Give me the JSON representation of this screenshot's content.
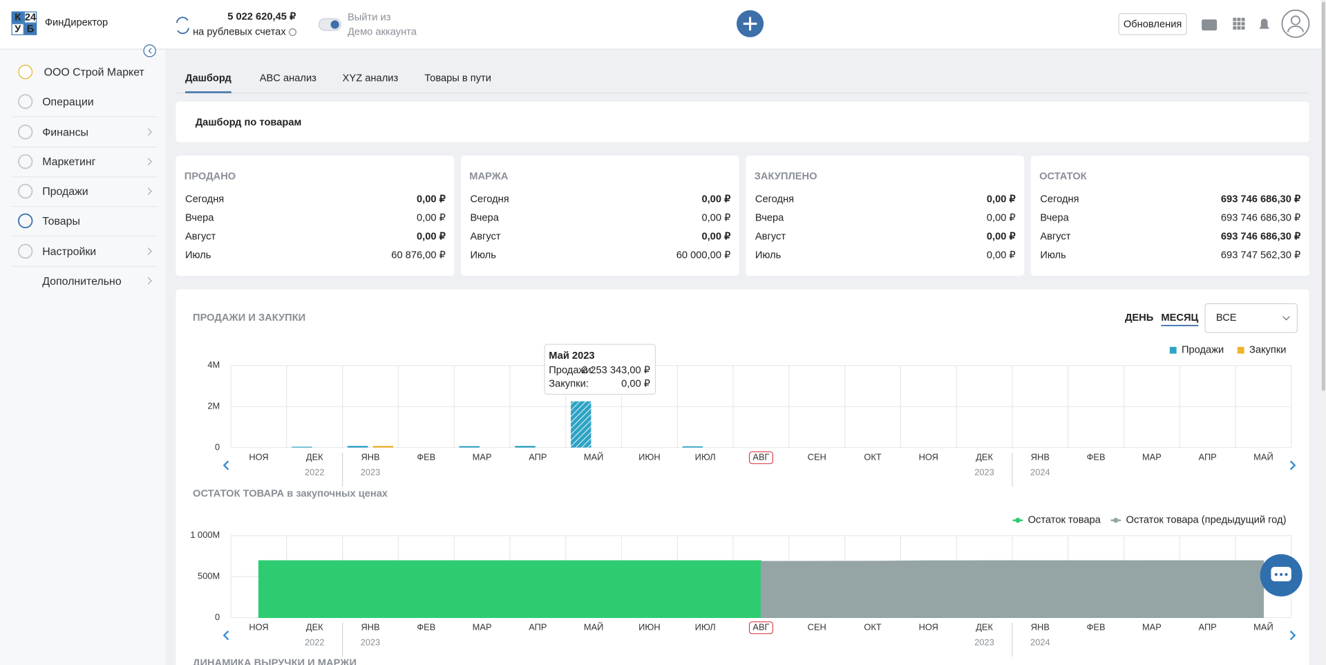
{
  "header": {
    "logo_letters": [
      "К",
      "24",
      "У",
      "Б"
    ],
    "app_name": "ФинДиректор",
    "balance": "5 022 620,45 ₽",
    "balance_note": "на рублевых счетах",
    "demo_line1": "Выйти из",
    "demo_line2": "Демо аккаунта",
    "updates_button": "Обновления"
  },
  "sidebar": {
    "company": "ООО Строй Маркет",
    "items": [
      "Операции",
      "Финансы",
      "Маркетинг",
      "Продажи",
      "Товары",
      "Настройки",
      "Дополнительно"
    ]
  },
  "tabs": [
    "Дашборд",
    "ABC анализ",
    "XYZ анализ",
    "Товары в пути"
  ],
  "page_title": "Дашборд по товарам",
  "cards": [
    {
      "title": "ПРОДАНО",
      "rows": [
        [
          "Сегодня",
          "0,00 ₽"
        ],
        [
          "Вчера",
          "0,00 ₽"
        ],
        [
          "Август",
          "0,00 ₽"
        ],
        [
          "Июль",
          "60 876,00 ₽"
        ]
      ]
    },
    {
      "title": "МАРЖА",
      "rows": [
        [
          "Сегодня",
          "0,00 ₽"
        ],
        [
          "Вчера",
          "0,00 ₽"
        ],
        [
          "Август",
          "0,00 ₽"
        ],
        [
          "Июль",
          "60 000,00 ₽"
        ]
      ]
    },
    {
      "title": "ЗАКУПЛЕНО",
      "rows": [
        [
          "Сегодня",
          "0,00 ₽"
        ],
        [
          "Вчера",
          "0,00 ₽"
        ],
        [
          "Август",
          "0,00 ₽"
        ],
        [
          "Июль",
          "0,00 ₽"
        ]
      ]
    },
    {
      "title": "ОСТАТОК",
      "rows": [
        [
          "Сегодня",
          "693 746 686,30 ₽"
        ],
        [
          "Вчера",
          "693 746 686,30 ₽"
        ],
        [
          "Август",
          "693 746 686,30 ₽"
        ],
        [
          "Июль",
          "693 747 562,30 ₽"
        ]
      ]
    }
  ],
  "charts_section": {
    "title": "ПРОДАЖИ И ЗАКУПКИ",
    "period_options": [
      "ДЕНЬ",
      "МЕСЯЦ"
    ],
    "filter": "ВСЕ",
    "next_title": "ДИНАМИКА ВЫРУЧКИ И МАРЖИ"
  },
  "chart_data": [
    {
      "type": "bar",
      "categories": [
        "НОЯ",
        "ДЕК",
        "ЯНВ",
        "ФЕВ",
        "МАР",
        "АПР",
        "МАЙ",
        "ИЮН",
        "ИЮЛ",
        "АВГ",
        "СЕН",
        "ОКТ",
        "НОЯ",
        "ДЕК",
        "ЯНВ",
        "ФЕВ",
        "МАР",
        "АПР",
        "МАЙ"
      ],
      "years": [
        null,
        "2022",
        "2023",
        null,
        null,
        null,
        null,
        null,
        null,
        null,
        null,
        null,
        null,
        "2023",
        "2024",
        null,
        null,
        null,
        null
      ],
      "highlight": 9,
      "ylim": [
        0,
        4000000
      ],
      "yticks": [
        0,
        {
          "value": 2000000,
          "label": "2M"
        },
        {
          "value": 4000000,
          "label": "4M"
        }
      ],
      "grid": true,
      "legend": "top-right",
      "series": [
        {
          "name": "Продажи",
          "color": "#2ea3c4",
          "values": [
            0,
            40000,
            80000,
            0,
            70000,
            80000,
            2253343,
            0,
            60876,
            0,
            null,
            null,
            null,
            null,
            null,
            null,
            null,
            null,
            null
          ]
        },
        {
          "name": "Закупки",
          "color": "#f0b429",
          "values": [
            0,
            0,
            80000,
            0,
            0,
            0,
            0,
            0,
            0,
            0,
            null,
            null,
            null,
            null,
            null,
            null,
            null,
            null,
            null
          ]
        }
      ],
      "tooltip": {
        "title": "Май 2023",
        "index": 6,
        "rows": [
          [
            "Продажи:",
            "2 253 343,00 ₽"
          ],
          [
            "Закупки:",
            "0,00 ₽"
          ]
        ]
      }
    },
    {
      "type": "area",
      "title": "ОСТАТОК ТОВАРА в закупочных ценах",
      "categories": [
        "НОЯ",
        "ДЕК",
        "ЯНВ",
        "ФЕВ",
        "МАР",
        "АПР",
        "МАЙ",
        "ИЮН",
        "ИЮЛ",
        "АВГ",
        "СЕН",
        "ОКТ",
        "НОЯ",
        "ДЕК",
        "ЯНВ",
        "ФЕВ",
        "МАР",
        "АПР",
        "МАЙ"
      ],
      "years": [
        null,
        "2022",
        "2023",
        null,
        null,
        null,
        null,
        null,
        null,
        null,
        null,
        null,
        null,
        "2023",
        "2024",
        null,
        null,
        null,
        null
      ],
      "highlight": 9,
      "ylim": [
        0,
        1000000000
      ],
      "yticks": [
        0,
        {
          "value": 500000000,
          "label": "500M"
        },
        {
          "value": 1000000000,
          "label": "1 000M"
        }
      ],
      "grid": true,
      "legend": "top-right",
      "series": [
        {
          "name": "Остаток товара",
          "color": "#2ecc71",
          "values": [
            694000000,
            694000000,
            694000000,
            694000000,
            694000000,
            694000000,
            693800000,
            693800000,
            693747562,
            693746686,
            null,
            null,
            null,
            null,
            null,
            null,
            null,
            null,
            null
          ]
        },
        {
          "name": "Остаток товара (предыдущий год)",
          "color": "#95a5a6",
          "values": [
            null,
            null,
            null,
            null,
            null,
            null,
            null,
            null,
            null,
            685000000,
            686000000,
            687000000,
            692000000,
            693000000,
            693500000,
            693500000,
            694000000,
            694000000,
            694000000
          ]
        }
      ]
    }
  ]
}
